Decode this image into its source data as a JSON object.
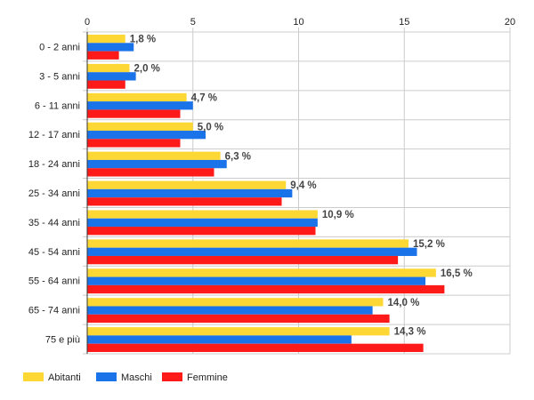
{
  "chart_data": {
    "type": "bar",
    "orientation": "horizontal",
    "categories": [
      "0 - 2 anni",
      "3 - 5 anni",
      "6 - 11 anni",
      "12 - 17 anni",
      "18 - 24 anni",
      "25 - 34 anni",
      "35 - 44 anni",
      "45 - 54 anni",
      "55 - 64 anni",
      "65 - 74 anni",
      "75 e più"
    ],
    "series": [
      {
        "name": "Abitanti",
        "color": "#fdd835",
        "values": [
          1.8,
          2.0,
          4.7,
          5.0,
          6.3,
          9.4,
          10.9,
          15.2,
          16.5,
          14.0,
          14.3
        ]
      },
      {
        "name": "Maschi",
        "color": "#1a73e8",
        "values": [
          2.2,
          2.3,
          5.0,
          5.6,
          6.6,
          9.7,
          10.9,
          15.6,
          16.0,
          13.5,
          12.5
        ]
      },
      {
        "name": "Femmine",
        "color": "#ff1a1a",
        "values": [
          1.5,
          1.8,
          4.4,
          4.4,
          6.0,
          9.2,
          10.8,
          14.7,
          16.9,
          14.3,
          15.9
        ]
      }
    ],
    "data_labels": [
      "1,8 %",
      "2,0 %",
      "4,7 %",
      "5,0 %",
      "6,3 %",
      "9,4 %",
      "10,9 %",
      "15,2 %",
      "16,5 %",
      "14,0 %",
      "14,3 %"
    ],
    "xlim": [
      0,
      20
    ],
    "xticks": [
      0,
      5,
      10,
      15,
      20
    ],
    "xtick_labels": [
      "0",
      "5",
      "10",
      "15",
      "20"
    ],
    "axis_position": "top",
    "grid": true,
    "legend_position": "bottom-left"
  }
}
